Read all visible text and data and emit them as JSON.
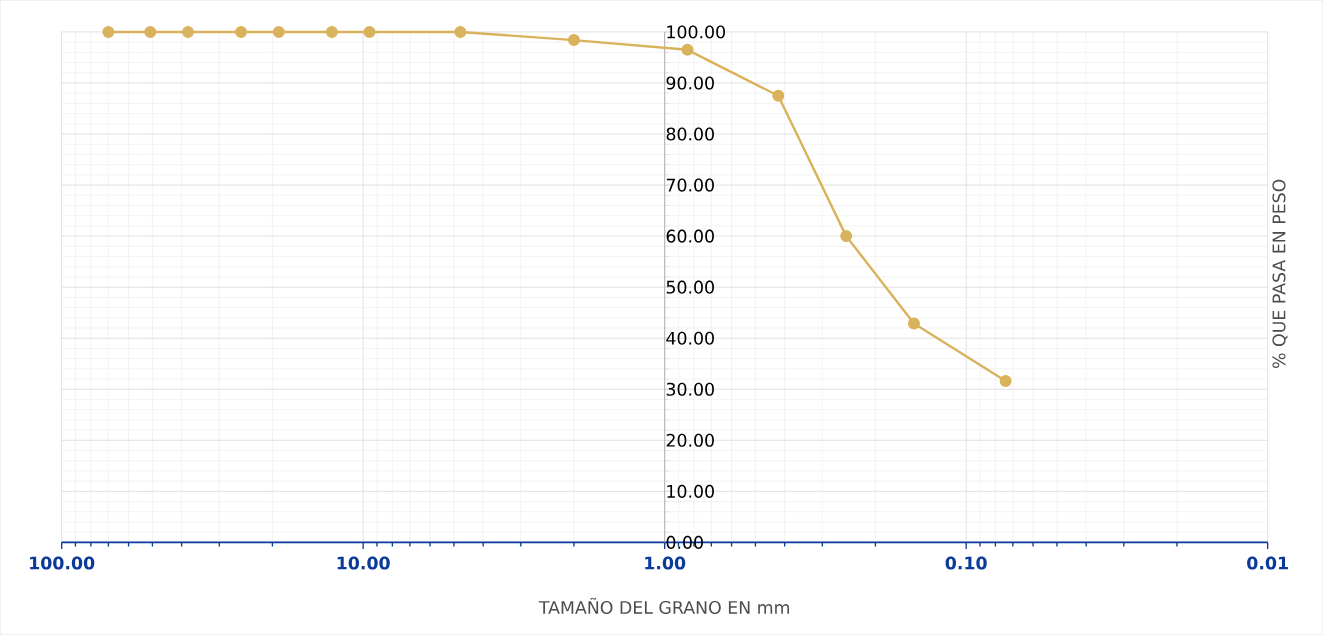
{
  "chart_data": {
    "type": "line",
    "xlabel": "TAMAÑO DEL GRANO EN mm",
    "ylabel": "% QUE PASA  EN PESO",
    "log": "x",
    "x": [
      70,
      50.8,
      38.1,
      25.4,
      19.05,
      12.7,
      9.525,
      4.76,
      2.0,
      0.84,
      0.42,
      0.25,
      0.149,
      0.074
    ],
    "series": [
      {
        "color": "#d9b25c",
        "values": [
          100,
          100,
          100,
          100,
          100,
          100,
          100,
          100,
          98.4,
          96.5,
          87.5,
          60.0,
          42.9,
          31.6
        ]
      }
    ],
    "xlim": [
      100,
      0.01
    ],
    "xticks": [
      {
        "value": 100,
        "label": "100.00"
      },
      {
        "value": 10,
        "label": "10.00"
      },
      {
        "value": 1,
        "label": "1.00"
      },
      {
        "value": 0.1,
        "label": "0.10"
      },
      {
        "value": 0.01,
        "label": "0.01"
      }
    ],
    "ylim": [
      0,
      100
    ],
    "yticks": [
      {
        "value": 0,
        "label": "0.00"
      },
      {
        "value": 10,
        "label": "10.00"
      },
      {
        "value": 20,
        "label": "20.00"
      },
      {
        "value": 30,
        "label": "30.00"
      },
      {
        "value": 40,
        "label": "40.00"
      },
      {
        "value": 50,
        "label": "50.00"
      },
      {
        "value": 60,
        "label": "60.00"
      },
      {
        "value": 70,
        "label": "70.00"
      },
      {
        "value": 80,
        "label": "80.00"
      },
      {
        "value": 90,
        "label": "90.00"
      },
      {
        "value": 100,
        "label": "100.00"
      }
    ],
    "grid": true,
    "marker": "circle"
  }
}
